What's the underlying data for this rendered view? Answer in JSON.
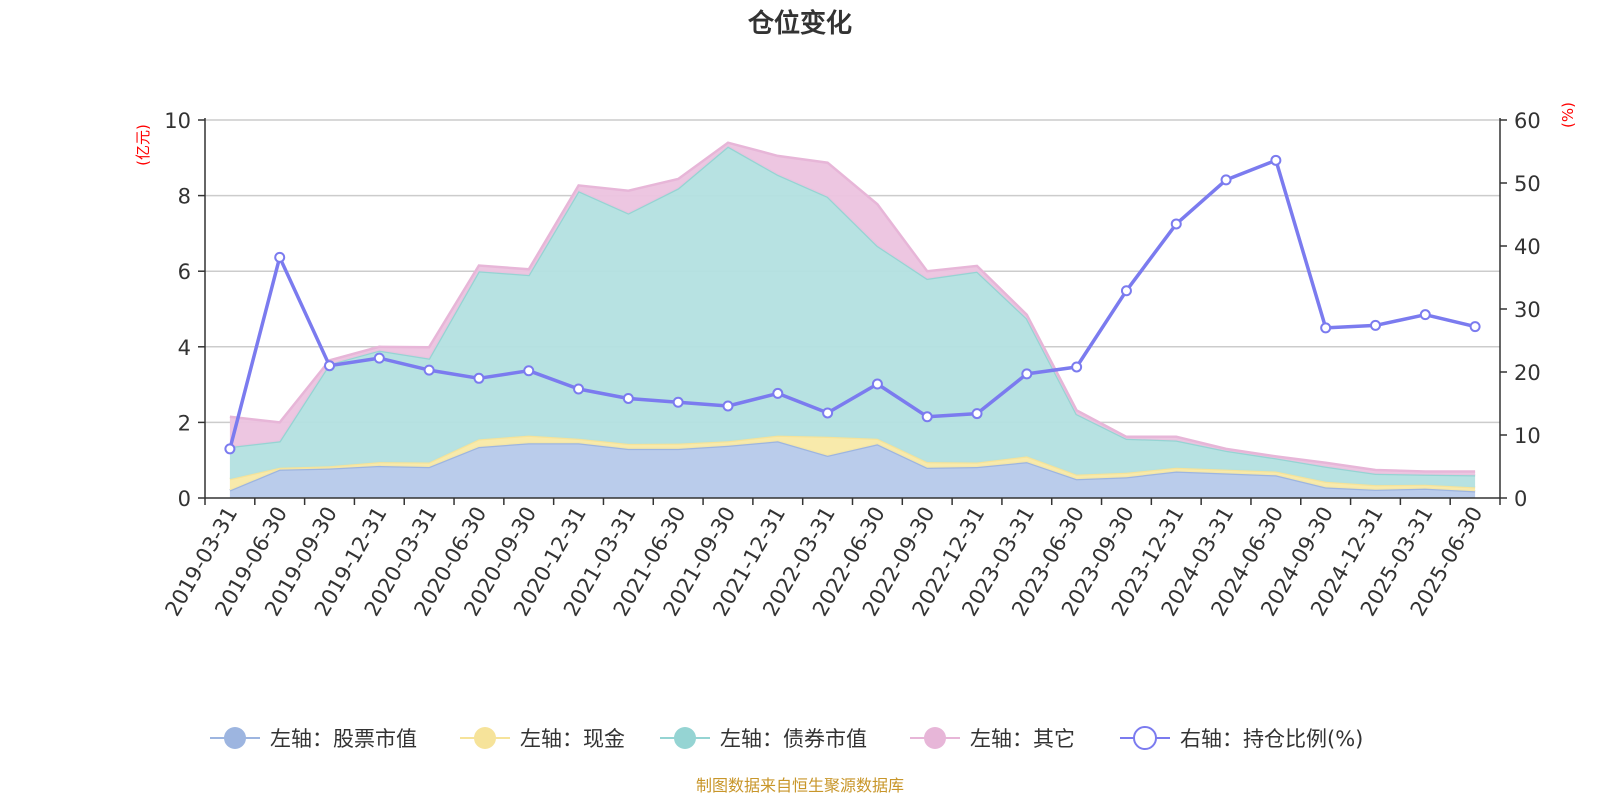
{
  "chart_data": {
    "type": "area",
    "title": "仓位变化",
    "left_unit": "(亿元)",
    "right_unit": "(%)",
    "categories": [
      "2019-03-31",
      "2019-06-30",
      "2019-09-30",
      "2019-12-31",
      "2020-03-31",
      "2020-06-30",
      "2020-09-30",
      "2020-12-31",
      "2021-03-31",
      "2021-06-30",
      "2021-09-30",
      "2021-12-31",
      "2022-03-31",
      "2022-06-30",
      "2022-09-30",
      "2022-12-31",
      "2023-03-31",
      "2023-06-30",
      "2023-09-30",
      "2023-12-31",
      "2024-03-31",
      "2024-06-30",
      "2024-09-30",
      "2024-12-31",
      "2025-03-31",
      "2025-06-30"
    ],
    "left_axis": {
      "min": 0,
      "max": 10,
      "ticks": [
        "0",
        "2",
        "4",
        "6",
        "8",
        "10"
      ]
    },
    "right_axis": {
      "min": 0,
      "max": 60,
      "ticks": [
        "0",
        "10",
        "20",
        "30",
        "40",
        "50",
        "60"
      ]
    },
    "stacked_series": [
      {
        "name": "左轴：股票市值",
        "color": "#9db5e0",
        "fill": "#b6c9ea",
        "values": [
          0.2,
          0.75,
          0.78,
          0.85,
          0.82,
          1.35,
          1.45,
          1.45,
          1.3,
          1.3,
          1.38,
          1.5,
          1.12,
          1.42,
          0.8,
          0.82,
          0.95,
          0.5,
          0.55,
          0.7,
          0.65,
          0.6,
          0.28,
          0.22,
          0.25,
          0.18
        ]
      },
      {
        "name": "左轴：现金",
        "color": "#f6e39a",
        "fill": "#f8e9a6",
        "values": [
          0.3,
          0.05,
          0.06,
          0.1,
          0.12,
          0.2,
          0.2,
          0.12,
          0.13,
          0.14,
          0.12,
          0.15,
          0.5,
          0.15,
          0.15,
          0.12,
          0.15,
          0.12,
          0.12,
          0.1,
          0.1,
          0.1,
          0.15,
          0.12,
          0.1,
          0.1
        ]
      },
      {
        "name": "左轴：债券市值",
        "color": "#95d4d3",
        "fill": "#b3e0e0",
        "values": [
          0.85,
          0.7,
          2.7,
          2.95,
          2.75,
          4.45,
          4.25,
          6.55,
          6.1,
          6.75,
          7.8,
          6.9,
          6.35,
          5.1,
          4.85,
          5.05,
          3.65,
          1.6,
          0.9,
          0.72,
          0.5,
          0.35,
          0.4,
          0.3,
          0.27,
          0.32
        ]
      },
      {
        "name": "左轴：其它",
        "color": "#e7b6d8",
        "fill": "#ecc3df",
        "values": [
          0.8,
          0.5,
          0.1,
          0.1,
          0.3,
          0.15,
          0.15,
          0.15,
          0.6,
          0.25,
          0.1,
          0.5,
          0.9,
          1.1,
          0.2,
          0.15,
          0.1,
          0.1,
          0.05,
          0.1,
          0.05,
          0.05,
          0.1,
          0.1,
          0.08,
          0.1
        ]
      }
    ],
    "line_series": {
      "name": "右轴：持仓比例(%)",
      "color": "#7b7bef",
      "values": [
        7.8,
        38.2,
        21.0,
        22.2,
        20.3,
        19.0,
        20.2,
        17.3,
        15.8,
        15.2,
        14.6,
        16.6,
        13.5,
        18.1,
        12.9,
        13.4,
        19.7,
        20.8,
        32.9,
        43.5,
        50.5,
        53.6,
        27.0,
        27.4,
        29.1,
        27.2
      ]
    },
    "legend": [
      {
        "label": "左轴：股票市值",
        "color": "#9db5e0",
        "kind": "area"
      },
      {
        "label": "左轴：现金",
        "color": "#f6e39a",
        "kind": "area"
      },
      {
        "label": "左轴：债券市值",
        "color": "#95d4d3",
        "kind": "area"
      },
      {
        "label": "左轴：其它",
        "color": "#e7b6d8",
        "kind": "area"
      },
      {
        "label": "右轴：持仓比例(%)",
        "color": "#7b7bef",
        "kind": "line"
      }
    ],
    "legend_placement": "bottom",
    "grid": true,
    "source": "制图数据来自恒生聚源数据库"
  }
}
